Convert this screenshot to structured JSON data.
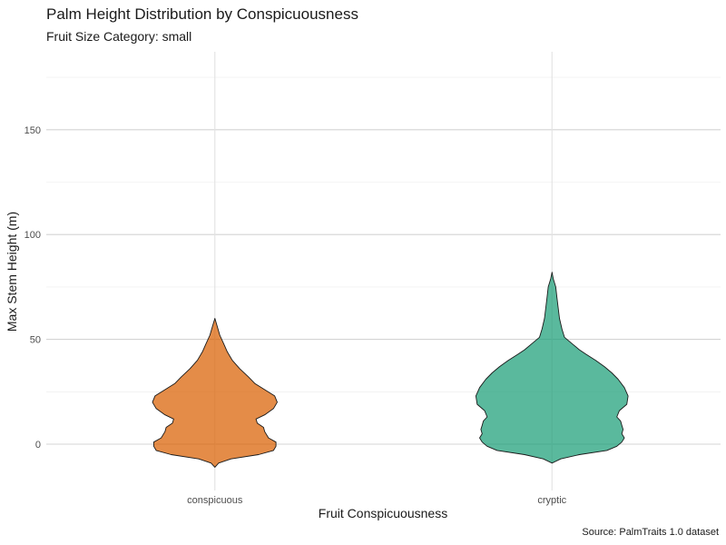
{
  "chart_data": {
    "type": "violin",
    "title": "Palm Height Distribution by Conspicuousness",
    "subtitle": "Fruit Size Category: small",
    "xlabel": "Fruit Conspicuousness",
    "ylabel": "Max Stem Height (m)",
    "caption": "Source: PalmTraits 1.0 dataset",
    "categories": [
      "conspicuous",
      "cryptic"
    ],
    "ylim": [
      -22,
      188
    ],
    "yticks": [
      0,
      50,
      100,
      150
    ],
    "ytick_labels": [
      "0",
      "50",
      "100",
      "150"
    ],
    "grid": true,
    "series": [
      {
        "category": "conspicuous",
        "color": "#d95f02",
        "min": -11,
        "max": 60,
        "density_profile": [
          [
            -11,
            0.0
          ],
          [
            -9,
            0.03
          ],
          [
            -7,
            0.13
          ],
          [
            -5,
            0.35
          ],
          [
            -3,
            0.47
          ],
          [
            -1,
            0.49
          ],
          [
            1,
            0.49
          ],
          [
            3,
            0.43
          ],
          [
            6,
            0.4
          ],
          [
            8,
            0.39
          ],
          [
            10,
            0.34
          ],
          [
            12,
            0.33
          ],
          [
            14,
            0.4
          ],
          [
            17,
            0.47
          ],
          [
            20,
            0.5
          ],
          [
            23,
            0.48
          ],
          [
            26,
            0.4
          ],
          [
            29,
            0.32
          ],
          [
            32,
            0.27
          ],
          [
            36,
            0.2
          ],
          [
            40,
            0.14
          ],
          [
            44,
            0.1
          ],
          [
            48,
            0.07
          ],
          [
            52,
            0.04
          ],
          [
            56,
            0.02
          ],
          [
            60,
            0.0
          ]
        ]
      },
      {
        "category": "cryptic",
        "color": "#1b9e77",
        "min": -9,
        "max": 82,
        "density_profile": [
          [
            -9,
            0.0
          ],
          [
            -7,
            0.07
          ],
          [
            -5,
            0.22
          ],
          [
            -3,
            0.44
          ],
          [
            -1,
            0.52
          ],
          [
            1,
            0.56
          ],
          [
            3,
            0.58
          ],
          [
            5,
            0.56
          ],
          [
            7,
            0.57
          ],
          [
            9,
            0.56
          ],
          [
            11,
            0.55
          ],
          [
            13,
            0.52
          ],
          [
            16,
            0.54
          ],
          [
            19,
            0.6
          ],
          [
            23,
            0.61
          ],
          [
            27,
            0.58
          ],
          [
            31,
            0.53
          ],
          [
            34,
            0.48
          ],
          [
            37,
            0.42
          ],
          [
            40,
            0.35
          ],
          [
            43,
            0.27
          ],
          [
            45,
            0.22
          ],
          [
            48,
            0.16
          ],
          [
            51,
            0.1
          ],
          [
            55,
            0.08
          ],
          [
            60,
            0.06
          ],
          [
            65,
            0.05
          ],
          [
            70,
            0.04
          ],
          [
            75,
            0.03
          ],
          [
            79,
            0.01
          ],
          [
            82,
            0.0
          ]
        ]
      }
    ]
  }
}
